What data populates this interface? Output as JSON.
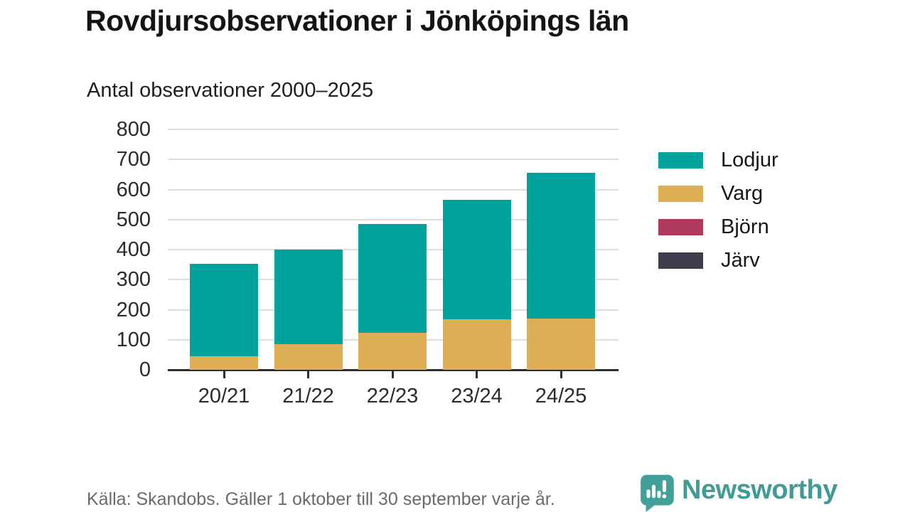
{
  "title": "Rovdjursobservationer i Jönköpings län",
  "subtitle": "Antal observationer 2000–2025",
  "footer": {
    "source": "Källa: Skandobs. Gäller 1 oktober till 30 september varje år."
  },
  "logo": {
    "brand": "Newsworthy",
    "color": "#3f9b96"
  },
  "colors": {
    "background": "#ffffff",
    "title_text": "#141414",
    "axis_text": "#2b2b2b",
    "gridline": "#dddddd",
    "axis_line": "#2f2f2f",
    "footer_text": "#6b6b6b",
    "brand_teal": "#3f9b96"
  },
  "chart_data": {
    "type": "bar",
    "stacked": true,
    "title": "Rovdjursobservationer i Jönköpings län",
    "subtitle": "Antal observationer 2000–2025",
    "categories": [
      "20/21",
      "21/22",
      "22/23",
      "23/24",
      "24/25"
    ],
    "series": [
      {
        "name": "Lodjur",
        "color": "#00a39b",
        "values": [
          307,
          315,
          363,
          398,
          485
        ]
      },
      {
        "name": "Varg",
        "color": "#deae55",
        "values": [
          45,
          85,
          122,
          167,
          170
        ]
      },
      {
        "name": "Björn",
        "color": "#b03a5e",
        "values": [
          0,
          0,
          0,
          0,
          0
        ]
      },
      {
        "name": "Järv",
        "color": "#3f3c4e",
        "values": [
          0,
          0,
          0,
          0,
          0
        ]
      }
    ],
    "stack_totals": [
      352,
      400,
      485,
      565,
      655
    ],
    "xlabel": "",
    "ylabel": "",
    "ylim": [
      0,
      800
    ],
    "yticks": [
      0,
      100,
      200,
      300,
      400,
      500,
      600,
      700,
      800
    ],
    "grid": true,
    "legend_position": "right"
  }
}
